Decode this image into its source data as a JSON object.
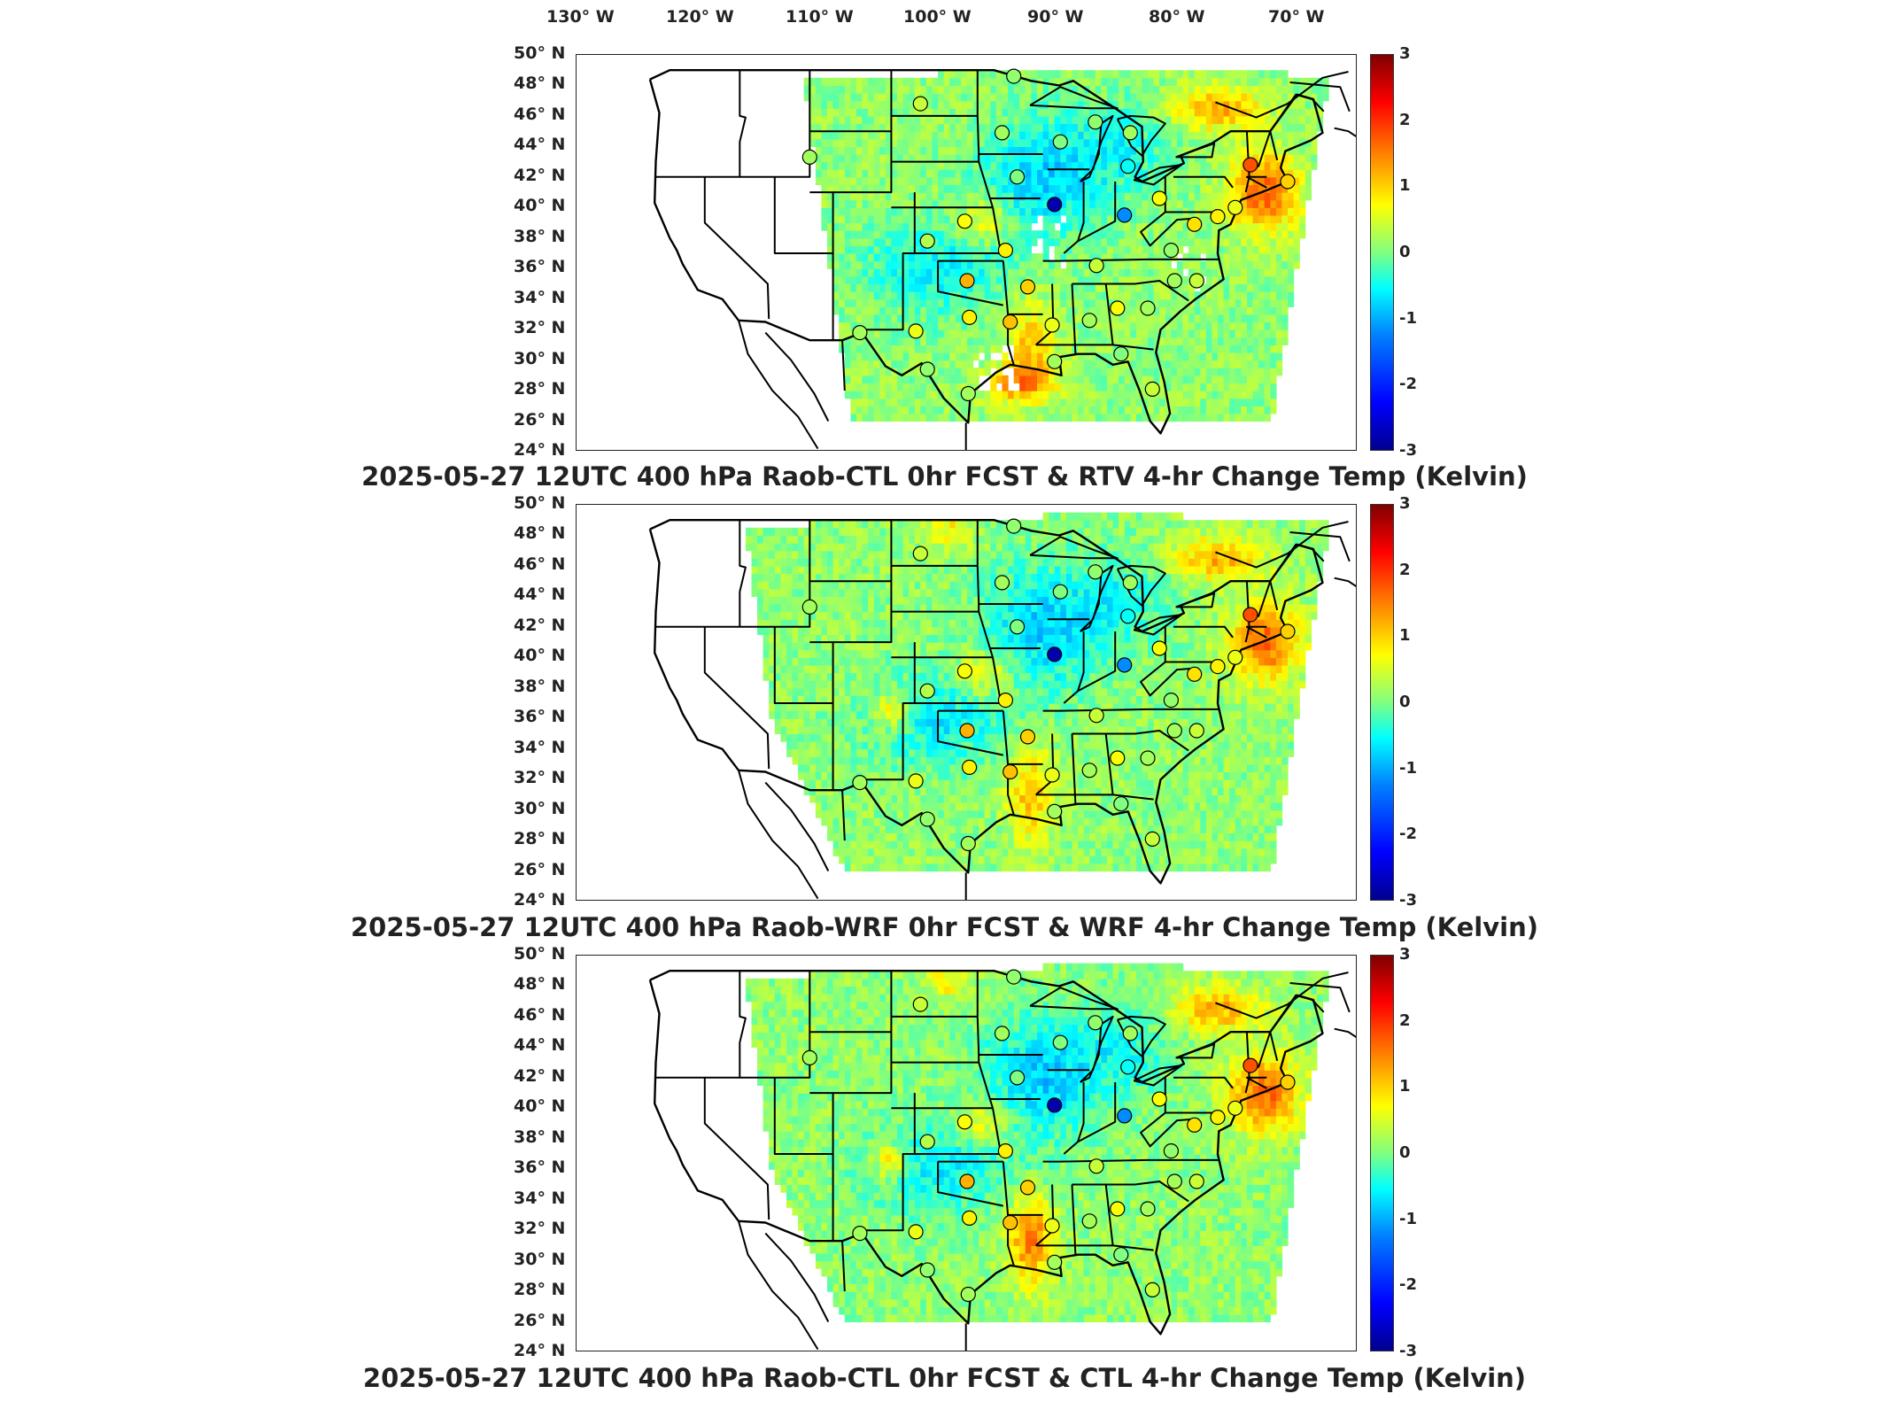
{
  "longitude_labels": [
    "130° W",
    "120° W",
    "110° W",
    "100° W",
    "90° W",
    "80° W",
    "70° W"
  ],
  "latitude_labels": [
    "50° N",
    "48° N",
    "46° N",
    "44° N",
    "42° N",
    "40° N",
    "38° N",
    "36° N",
    "34° N",
    "32° N",
    "30° N",
    "28° N",
    "26° N",
    "24° N"
  ],
  "colorbar": {
    "ticks": [
      "3",
      "2",
      "1",
      "0",
      "-1",
      "-2",
      "-3"
    ],
    "min": -3,
    "max": 3,
    "colormap": [
      "#00008f",
      "#0000ff",
      "#0080ff",
      "#00ffff",
      "#80ff80",
      "#ffff00",
      "#ff8000",
      "#ff0000",
      "#800000"
    ]
  },
  "panels": [
    {
      "title": "2025-05-27 12UTC 400 hPa Raob-CTL 0hr FCST & RTV 4-hr Change Temp (Kelvin)",
      "domain": "partial"
    },
    {
      "title": "2025-05-27 12UTC 400 hPa Raob-WRF 0hr FCST & WRF 4-hr Change Temp (Kelvin)",
      "domain": "full"
    },
    {
      "title": "2025-05-27 12UTC 400 hPa Raob-CTL 0hr FCST & CTL 4-hr Change Temp (Kelvin)",
      "domain": "full"
    }
  ],
  "stations": [
    {
      "lon": -111.0,
      "lat": 43.3,
      "v": 0.2
    },
    {
      "lon": -101.5,
      "lat": 46.8,
      "v": 0.4
    },
    {
      "lon": -93.5,
      "lat": 48.6,
      "v": 0.1
    },
    {
      "lon": -94.5,
      "lat": 44.9,
      "v": 0.2
    },
    {
      "lon": -89.5,
      "lat": 44.3,
      "v": 0.0
    },
    {
      "lon": -86.5,
      "lat": 45.6,
      "v": 0.1
    },
    {
      "lon": -83.7,
      "lat": 42.7,
      "v": -0.5
    },
    {
      "lon": -90.0,
      "lat": 40.2,
      "v": -2.8
    },
    {
      "lon": -93.2,
      "lat": 42.0,
      "v": 0.0
    },
    {
      "lon": -84.0,
      "lat": 39.5,
      "v": -1.2
    },
    {
      "lon": -97.7,
      "lat": 39.1,
      "v": 0.7
    },
    {
      "lon": -100.9,
      "lat": 37.8,
      "v": 0.3
    },
    {
      "lon": -94.2,
      "lat": 37.2,
      "v": 0.8
    },
    {
      "lon": -97.5,
      "lat": 35.2,
      "v": 1.2
    },
    {
      "lon": -92.3,
      "lat": 34.8,
      "v": 1.0
    },
    {
      "lon": -86.4,
      "lat": 36.2,
      "v": 0.4
    },
    {
      "lon": -81.0,
      "lat": 40.6,
      "v": 0.7
    },
    {
      "lon": -78.0,
      "lat": 38.9,
      "v": 0.9
    },
    {
      "lon": -76.0,
      "lat": 39.4,
      "v": 0.8
    },
    {
      "lon": -74.5,
      "lat": 40.0,
      "v": 0.6
    },
    {
      "lon": -73.2,
      "lat": 42.8,
      "v": 1.8
    },
    {
      "lon": -70.0,
      "lat": 41.7,
      "v": 1.0
    },
    {
      "lon": -80.0,
      "lat": 37.2,
      "v": 0.1
    },
    {
      "lon": -79.7,
      "lat": 35.2,
      "v": 0.2
    },
    {
      "lon": -82.0,
      "lat": 33.4,
      "v": 0.2
    },
    {
      "lon": -84.6,
      "lat": 33.4,
      "v": 0.7
    },
    {
      "lon": -87.0,
      "lat": 32.6,
      "v": 0.2
    },
    {
      "lon": -90.2,
      "lat": 32.3,
      "v": 0.6
    },
    {
      "lon": -93.8,
      "lat": 32.5,
      "v": 1.1
    },
    {
      "lon": -97.3,
      "lat": 32.8,
      "v": 0.8
    },
    {
      "lon": -101.9,
      "lat": 31.9,
      "v": 0.6
    },
    {
      "lon": -106.7,
      "lat": 31.8,
      "v": 0.2
    },
    {
      "lon": -100.9,
      "lat": 29.4,
      "v": 0.1
    },
    {
      "lon": -97.4,
      "lat": 27.8,
      "v": 0.2
    },
    {
      "lon": -90.0,
      "lat": 29.9,
      "v": 0.2
    },
    {
      "lon": -84.3,
      "lat": 30.4,
      "v": 0.0
    },
    {
      "lon": -81.6,
      "lat": 28.1,
      "v": 0.4
    },
    {
      "lon": -77.8,
      "lat": 35.2,
      "v": 0.4
    },
    {
      "lon": -83.5,
      "lat": 44.9,
      "v": 0.2
    }
  ]
}
